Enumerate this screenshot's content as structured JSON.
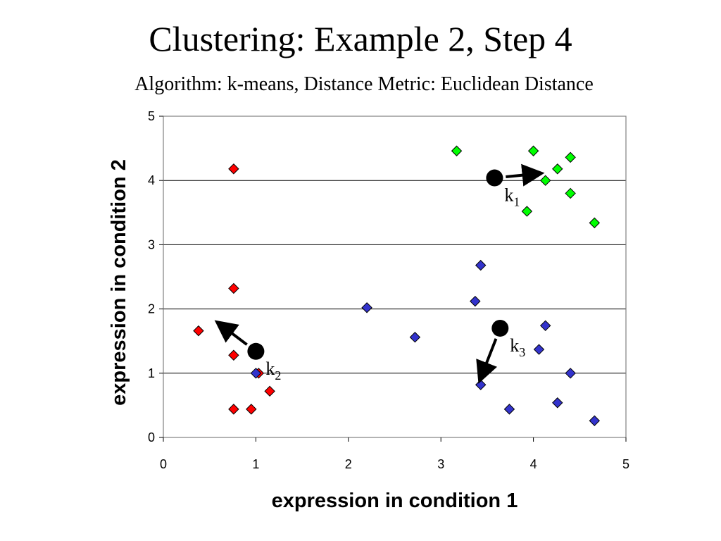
{
  "slide": {
    "title": "Clustering: Example 2, Step 4",
    "subtitle": "Algorithm: k-means, Distance Metric: Euclidean Distance"
  },
  "chart_data": {
    "type": "scatter",
    "xlabel": "expression in condition 1",
    "ylabel": "expression in condition 2",
    "xlim": [
      0,
      5
    ],
    "ylim": [
      0,
      5
    ],
    "xticks": [
      "0",
      "1",
      "2",
      "3",
      "4",
      "5"
    ],
    "yticks": [
      "0",
      "1",
      "2",
      "3",
      "4",
      "5"
    ],
    "grid": "horizontal",
    "series": [
      {
        "color": "#ff0000",
        "marker": "diamond",
        "points": [
          [
            0.76,
            4.18
          ],
          [
            0.76,
            2.32
          ],
          [
            0.38,
            1.66
          ],
          [
            0.76,
            1.28
          ],
          [
            1.03,
            1.0
          ],
          [
            1.15,
            0.72
          ],
          [
            0.76,
            0.44
          ],
          [
            0.95,
            0.44
          ]
        ]
      },
      {
        "color": "#00ff00",
        "marker": "diamond",
        "points": [
          [
            3.17,
            4.46
          ],
          [
            4.0,
            4.46
          ],
          [
            4.4,
            4.36
          ],
          [
            4.26,
            4.18
          ],
          [
            4.13,
            4.0
          ],
          [
            4.4,
            3.8
          ],
          [
            3.93,
            3.52
          ],
          [
            4.66,
            3.34
          ]
        ]
      },
      {
        "color": "#3333cc",
        "marker": "diamond",
        "points": [
          [
            3.43,
            2.68
          ],
          [
            2.2,
            2.02
          ],
          [
            3.37,
            2.12
          ],
          [
            2.72,
            1.56
          ],
          [
            4.13,
            1.74
          ],
          [
            4.06,
            1.37
          ],
          [
            4.4,
            1.0
          ],
          [
            1.0,
            1.0
          ],
          [
            3.43,
            0.82
          ],
          [
            3.74,
            0.44
          ],
          [
            4.26,
            0.54
          ],
          [
            4.66,
            0.26
          ]
        ]
      }
    ],
    "centroids": [
      {
        "label": "k",
        "sub": "1",
        "x": 3.58,
        "y": 4.04,
        "arrow_to": [
          4.0,
          4.1
        ]
      },
      {
        "label": "k",
        "sub": "2",
        "x": 1.0,
        "y": 1.34,
        "arrow_to": [
          0.65,
          1.72
        ]
      },
      {
        "label": "k",
        "sub": "3",
        "x": 3.64,
        "y": 1.7,
        "arrow_to": [
          3.45,
          1.0
        ]
      }
    ]
  }
}
